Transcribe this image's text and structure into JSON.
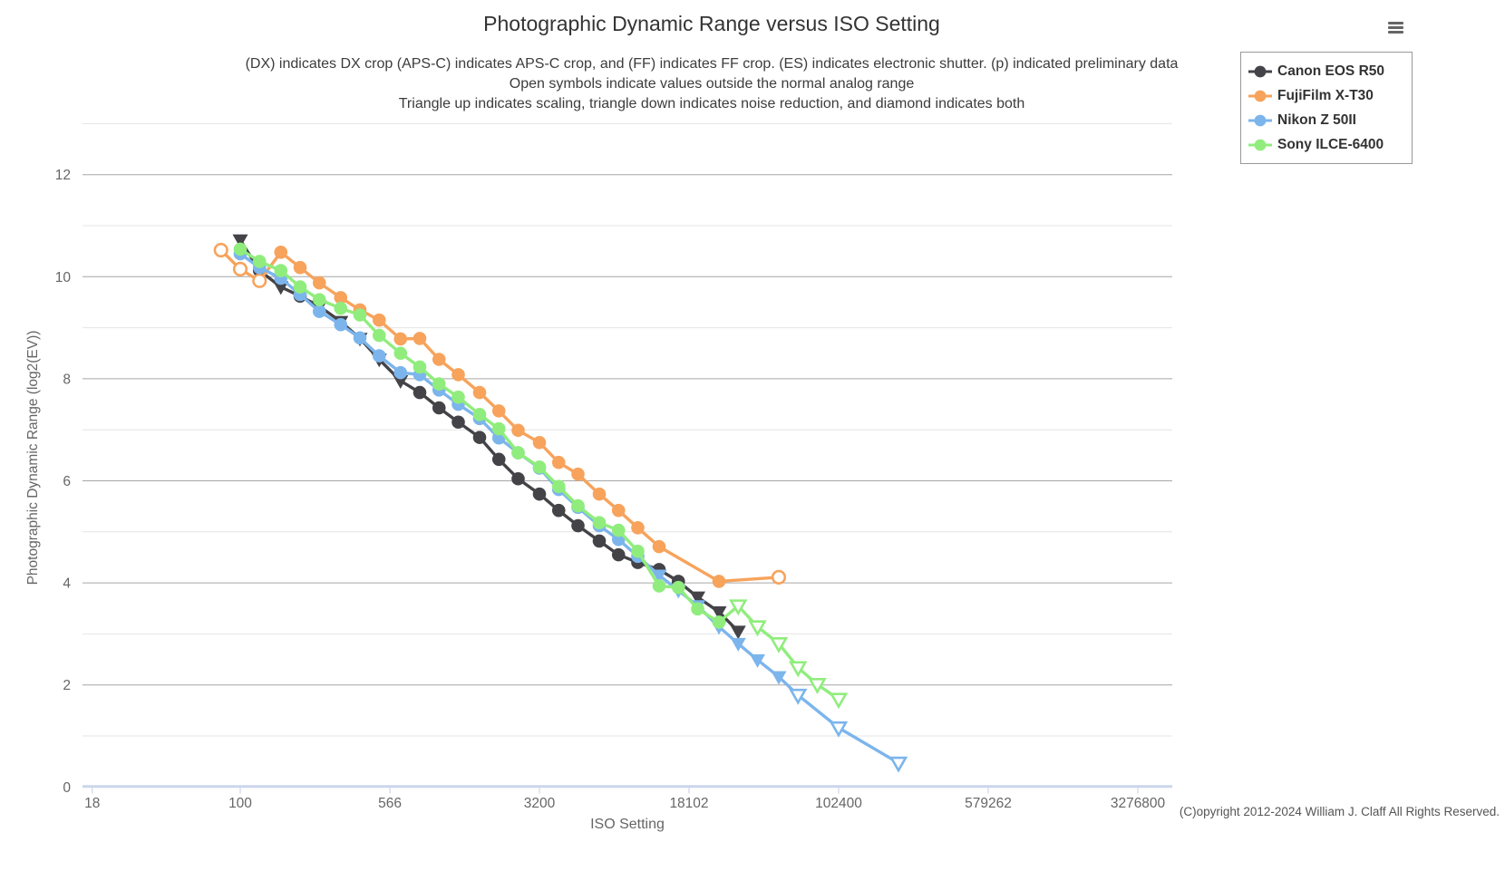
{
  "header": {
    "title": "Photographic Dynamic Range versus ISO Setting",
    "subtitles": [
      "(DX) indicates DX crop (APS-C) indicates APS-C crop, and (FF) indicates FF crop. (ES) indicates electronic shutter. (p) indicated preliminary data",
      "Open symbols indicate values outside the normal analog range",
      "Triangle up indicates scaling, triangle down indicates noise reduction, and diamond indicates both"
    ]
  },
  "footer": {
    "copyright": "(C)opyright 2012-2024 William J. Claff All Rights Reserved."
  },
  "legend": {
    "items": [
      {
        "label": "Canon EOS R50",
        "color": "#434348"
      },
      {
        "label": "FujiFilm X-T30",
        "color": "#f7a35c"
      },
      {
        "label": "Nikon Z 50II",
        "color": "#7cb5ec"
      },
      {
        "label": "Sony ILCE-6400",
        "color": "#90ed7d"
      }
    ]
  },
  "chart_data": {
    "type": "line",
    "title": "Photographic Dynamic Range versus ISO Setting",
    "xlabel": "ISO Setting",
    "ylabel": "Photographic Dynamic Range (log2(EV))",
    "x_scale": "log",
    "x_ticks": [
      18,
      100,
      566,
      3200,
      18102,
      102400,
      579262,
      3276800
    ],
    "y_ticks": [
      0,
      2,
      4,
      6,
      8,
      10,
      12
    ],
    "ylim": [
      0,
      13
    ],
    "grid": "horizontal-only",
    "legend_position": "top-right",
    "marker_key": {
      "c": "filled circle (normal value)",
      "oc": "open circle (outside normal analog range)",
      "td": "filled triangle-down (noise reduction)",
      "otd": "open triangle-down (noise reduction, outside analog range)"
    },
    "series": [
      {
        "name": "Canon EOS R50",
        "color": "#434348",
        "points": [
          [
            100,
            10.72,
            "td"
          ],
          [
            125,
            10.12
          ],
          [
            160,
            9.8,
            "td"
          ],
          [
            200,
            9.62
          ],
          [
            250,
            9.42,
            "td"
          ],
          [
            320,
            9.12,
            "td"
          ],
          [
            400,
            8.79,
            "td"
          ],
          [
            500,
            8.38,
            "td"
          ],
          [
            640,
            7.96,
            "td"
          ],
          [
            800,
            7.73
          ],
          [
            1000,
            7.43
          ],
          [
            1250,
            7.15
          ],
          [
            1600,
            6.85
          ],
          [
            2000,
            6.42
          ],
          [
            2500,
            6.04
          ],
          [
            3200,
            5.74
          ],
          [
            4000,
            5.42
          ],
          [
            5000,
            5.12
          ],
          [
            6400,
            4.82
          ],
          [
            8000,
            4.55
          ],
          [
            10000,
            4.4
          ],
          [
            12800,
            4.26
          ],
          [
            16000,
            4.03
          ],
          [
            20000,
            3.72,
            "td"
          ],
          [
            25600,
            3.43,
            "td"
          ],
          [
            32000,
            3.05,
            "td"
          ]
        ]
      },
      {
        "name": "FujiFilm X-T30",
        "color": "#f7a35c",
        "points": [
          [
            80,
            10.52,
            "oc"
          ],
          [
            100,
            10.15,
            "oc"
          ],
          [
            125,
            9.92,
            "oc"
          ],
          [
            160,
            10.48
          ],
          [
            200,
            10.18
          ],
          [
            250,
            9.88
          ],
          [
            320,
            9.59
          ],
          [
            400,
            9.35
          ],
          [
            500,
            9.15
          ],
          [
            640,
            8.78
          ],
          [
            800,
            8.79
          ],
          [
            1000,
            8.38
          ],
          [
            1250,
            8.08
          ],
          [
            1600,
            7.73
          ],
          [
            2000,
            7.37
          ],
          [
            2500,
            6.99
          ],
          [
            3200,
            6.75
          ],
          [
            4000,
            6.36
          ],
          [
            5000,
            6.13
          ],
          [
            6400,
            5.74
          ],
          [
            8000,
            5.42
          ],
          [
            10000,
            5.08
          ],
          [
            12800,
            4.71
          ],
          [
            25600,
            4.03
          ],
          [
            51200,
            4.11,
            "oc"
          ]
        ]
      },
      {
        "name": "Nikon Z 50II",
        "color": "#7cb5ec",
        "points": [
          [
            100,
            10.45
          ],
          [
            125,
            10.18
          ],
          [
            160,
            9.97
          ],
          [
            200,
            9.65
          ],
          [
            250,
            9.32
          ],
          [
            320,
            9.06
          ],
          [
            400,
            8.8
          ],
          [
            500,
            8.45
          ],
          [
            640,
            8.12
          ],
          [
            800,
            8.08
          ],
          [
            1000,
            7.78
          ],
          [
            1250,
            7.5
          ],
          [
            1600,
            7.22
          ],
          [
            2000,
            6.84
          ],
          [
            2500,
            6.55
          ],
          [
            3200,
            6.25
          ],
          [
            4000,
            5.83
          ],
          [
            5000,
            5.48
          ],
          [
            6400,
            5.12
          ],
          [
            8000,
            4.85
          ],
          [
            10000,
            4.52
          ],
          [
            12800,
            4.15,
            "td"
          ],
          [
            16000,
            3.85,
            "td"
          ],
          [
            20000,
            3.55,
            "td"
          ],
          [
            25600,
            3.14,
            "td"
          ],
          [
            32000,
            2.81,
            "td"
          ],
          [
            40000,
            2.49,
            "td"
          ],
          [
            51200,
            2.16,
            "td"
          ],
          [
            64000,
            1.8,
            "otd"
          ],
          [
            102400,
            1.16,
            "otd"
          ],
          [
            204800,
            0.47,
            "otd"
          ]
        ]
      },
      {
        "name": "Sony ILCE-6400",
        "color": "#90ed7d",
        "points": [
          [
            100,
            10.54
          ],
          [
            125,
            10.3
          ],
          [
            160,
            10.12
          ],
          [
            200,
            9.8
          ],
          [
            250,
            9.55
          ],
          [
            320,
            9.38
          ],
          [
            400,
            9.25
          ],
          [
            500,
            8.85
          ],
          [
            640,
            8.5
          ],
          [
            800,
            8.23
          ],
          [
            1000,
            7.9
          ],
          [
            1250,
            7.64
          ],
          [
            1600,
            7.3
          ],
          [
            2000,
            7.02
          ],
          [
            2500,
            6.55
          ],
          [
            3200,
            6.27
          ],
          [
            4000,
            5.89
          ],
          [
            5000,
            5.51
          ],
          [
            6400,
            5.18
          ],
          [
            8000,
            5.03
          ],
          [
            10000,
            4.62
          ],
          [
            12800,
            3.94
          ],
          [
            16000,
            3.91
          ],
          [
            20000,
            3.49
          ],
          [
            25600,
            3.23
          ],
          [
            32000,
            3.55,
            "otd"
          ],
          [
            40000,
            3.14,
            "otd"
          ],
          [
            51200,
            2.81,
            "otd"
          ],
          [
            64000,
            2.34,
            "otd"
          ],
          [
            80000,
            2.01,
            "otd"
          ],
          [
            102400,
            1.72,
            "otd"
          ]
        ]
      }
    ]
  }
}
